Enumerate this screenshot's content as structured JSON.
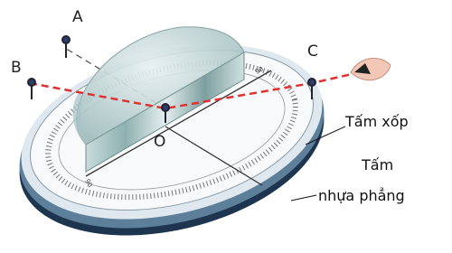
{
  "points": {
    "A": "A",
    "B": "B",
    "C": "C",
    "O": "O"
  },
  "scale_labels": [
    "90",
    "90"
  ],
  "callouts": [
    {
      "lines": [
        "Tấm xốp"
      ]
    },
    {
      "lines": [
        "Tấm",
        "nhựa phẳng"
      ]
    }
  ]
}
